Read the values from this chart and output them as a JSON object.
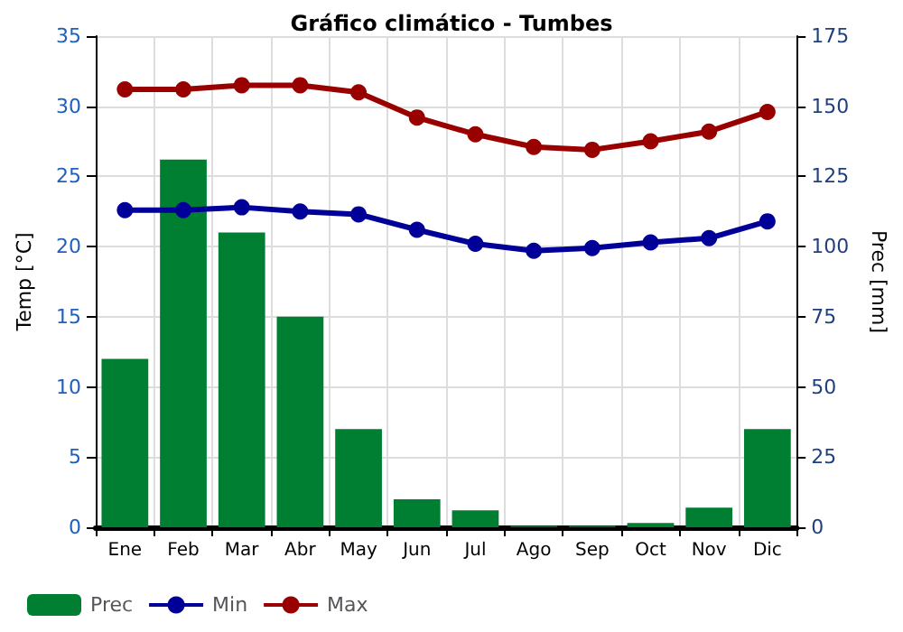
{
  "chart_data": {
    "type": "line",
    "title": "Gráfico climático - Tumbes",
    "ylabel": "Temp [°C]",
    "y2label": "Prec [mm]",
    "categories": [
      "Ene",
      "Feb",
      "Mar",
      "Abr",
      "May",
      "Jun",
      "Jul",
      "Ago",
      "Sep",
      "Oct",
      "Nov",
      "Dic"
    ],
    "series": [
      {
        "name": "Prec",
        "type": "bar",
        "axis": "y2",
        "color": "#007f33",
        "values": [
          60,
          131,
          105,
          75,
          35,
          10,
          6,
          0.5,
          0.5,
          1.5,
          7,
          35
        ]
      },
      {
        "name": "Min",
        "color": "#000099",
        "values": [
          22.6,
          22.6,
          22.8,
          22.5,
          22.3,
          21.2,
          20.2,
          19.7,
          19.9,
          20.3,
          20.6,
          21.8
        ]
      },
      {
        "name": "Max",
        "color": "#990000",
        "values": [
          31.2,
          31.2,
          31.5,
          31.5,
          31,
          29.2,
          28,
          27.1,
          26.9,
          27.5,
          28.2,
          29.6
        ]
      }
    ],
    "ylim": [
      0,
      35
    ],
    "yticks": [
      0,
      5,
      10,
      15,
      20,
      25,
      30,
      35
    ],
    "y2lim": [
      0,
      175
    ],
    "y2ticks": [
      0,
      25,
      50,
      75,
      100,
      125,
      150,
      175
    ],
    "grid": true,
    "legend": "bottom",
    "marker": "circle",
    "line_style": "solid"
  }
}
